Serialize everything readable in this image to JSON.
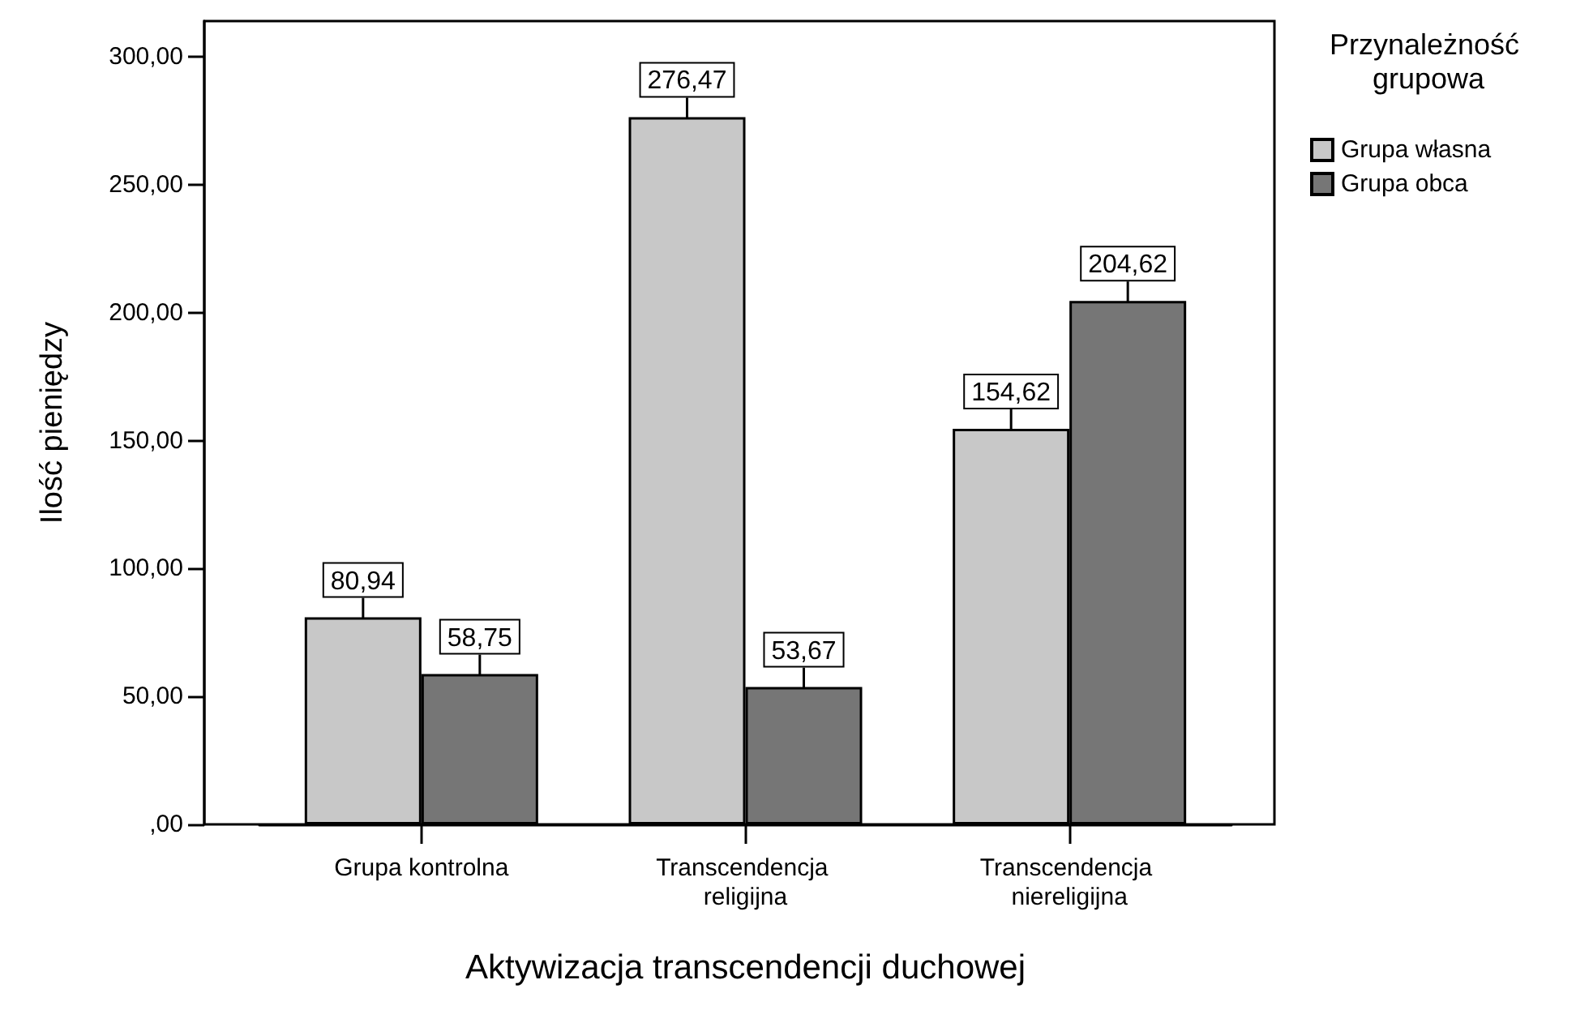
{
  "chart_data": {
    "type": "bar",
    "xlabel": "Aktywizacja transcendencji duchowej",
    "ylabel": "Ilość pieniędzy",
    "legend_title": "Przynależność grupowa",
    "categories": [
      "Grupa kontrolna",
      "Transcendencja religijna",
      "Transcendencja niereligijna"
    ],
    "series": [
      {
        "name": "Grupa własna",
        "color": "#c8c8c8",
        "values": [
          80.94,
          276.47,
          154.62
        ],
        "value_labels": [
          "80,94",
          "276,47",
          "154,62"
        ]
      },
      {
        "name": "Grupa obca",
        "color": "#767676",
        "values": [
          58.75,
          53.67,
          204.62
        ],
        "value_labels": [
          "58,75",
          "53,67",
          "204,62"
        ]
      }
    ],
    "ylim": [
      0,
      314
    ],
    "yticks": [
      {
        "value": 0,
        "label": ",00"
      },
      {
        "value": 50,
        "label": "50,00"
      },
      {
        "value": 100,
        "label": "100,00"
      },
      {
        "value": 150,
        "label": "150,00"
      },
      {
        "value": 200,
        "label": "200,00"
      },
      {
        "value": 250,
        "label": "250,00"
      },
      {
        "value": 300,
        "label": "300,00"
      }
    ],
    "legend": "top right"
  }
}
